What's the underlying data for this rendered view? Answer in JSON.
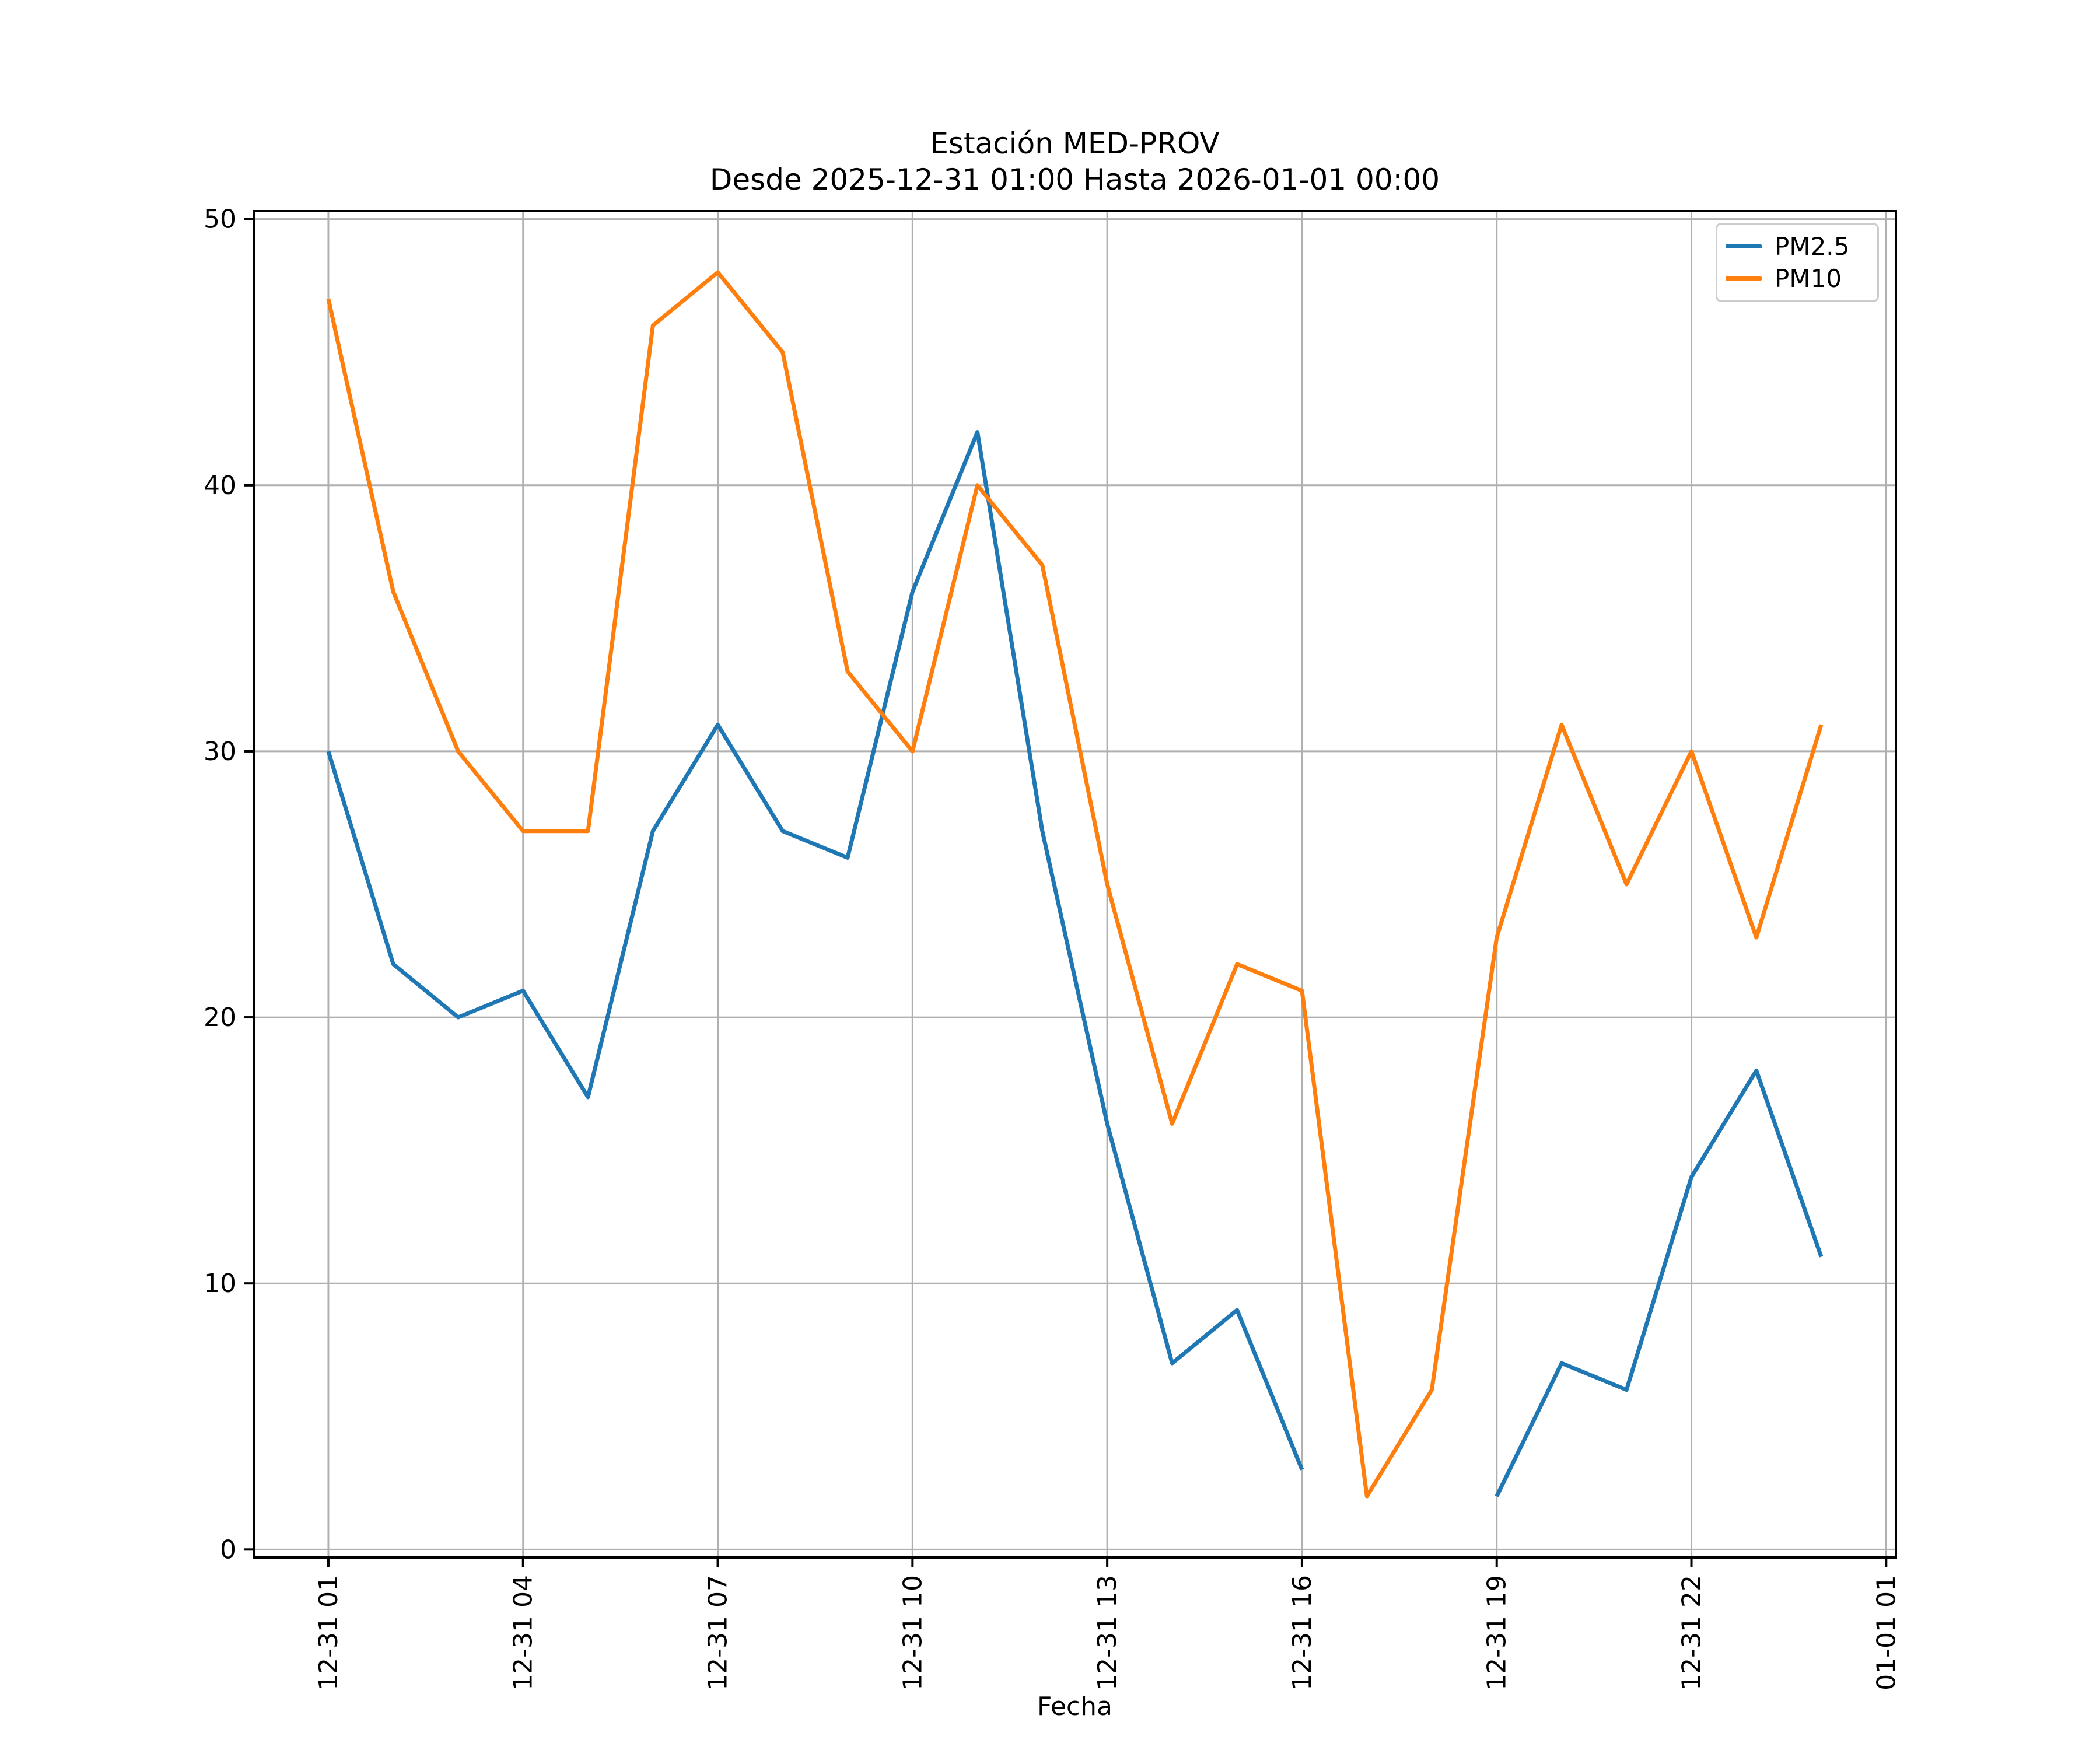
{
  "title": {
    "line1": "Estación MED-PROV",
    "line2": "Desde 2025-12-31 01:00 Hasta 2026-01-01 00:00"
  },
  "chart_data": {
    "type": "line",
    "title": "Estación MED-PROV",
    "subtitle": "Desde 2025-12-31 01:00 Hasta 2026-01-01 00:00",
    "xlabel": "Fecha",
    "ylabel": "",
    "grid": true,
    "legend_position": "upper right",
    "ylim": [
      0,
      50
    ],
    "yticks": [
      0,
      10,
      20,
      30,
      40,
      50
    ],
    "x_hours": [
      1,
      2,
      3,
      4,
      5,
      6,
      7,
      8,
      9,
      10,
      11,
      12,
      13,
      14,
      15,
      16,
      17,
      18,
      19,
      20,
      21,
      22,
      23,
      24
    ],
    "xtick_positions": [
      1,
      4,
      7,
      10,
      13,
      16,
      19,
      22,
      25
    ],
    "xtick_labels": [
      "12-31 01",
      "12-31 04",
      "12-31 07",
      "12-31 10",
      "12-31 13",
      "12-31 16",
      "12-31 19",
      "12-31 22",
      "01-01 01"
    ],
    "series": [
      {
        "name": "PM2.5",
        "color": "#1f77b4",
        "values": [
          30,
          22,
          20,
          21,
          17,
          27,
          31,
          27,
          26,
          36,
          42,
          27,
          16,
          7,
          9,
          3,
          null,
          null,
          2,
          7,
          6,
          14,
          18,
          11
        ]
      },
      {
        "name": "PM10",
        "color": "#ff7f0e",
        "values": [
          47,
          36,
          30,
          27,
          27,
          46,
          48,
          45,
          33,
          30,
          40,
          37,
          25,
          16,
          22,
          21,
          2,
          6,
          23,
          31,
          25,
          30,
          23,
          31
        ]
      }
    ]
  },
  "colors": {
    "background": "#ffffff",
    "grid": "#b0b0b0",
    "spine": "#000000",
    "tick_text": "#000000",
    "pm25": "#1f77b4",
    "pm10": "#ff7f0e",
    "legend_border": "#cccccc"
  }
}
